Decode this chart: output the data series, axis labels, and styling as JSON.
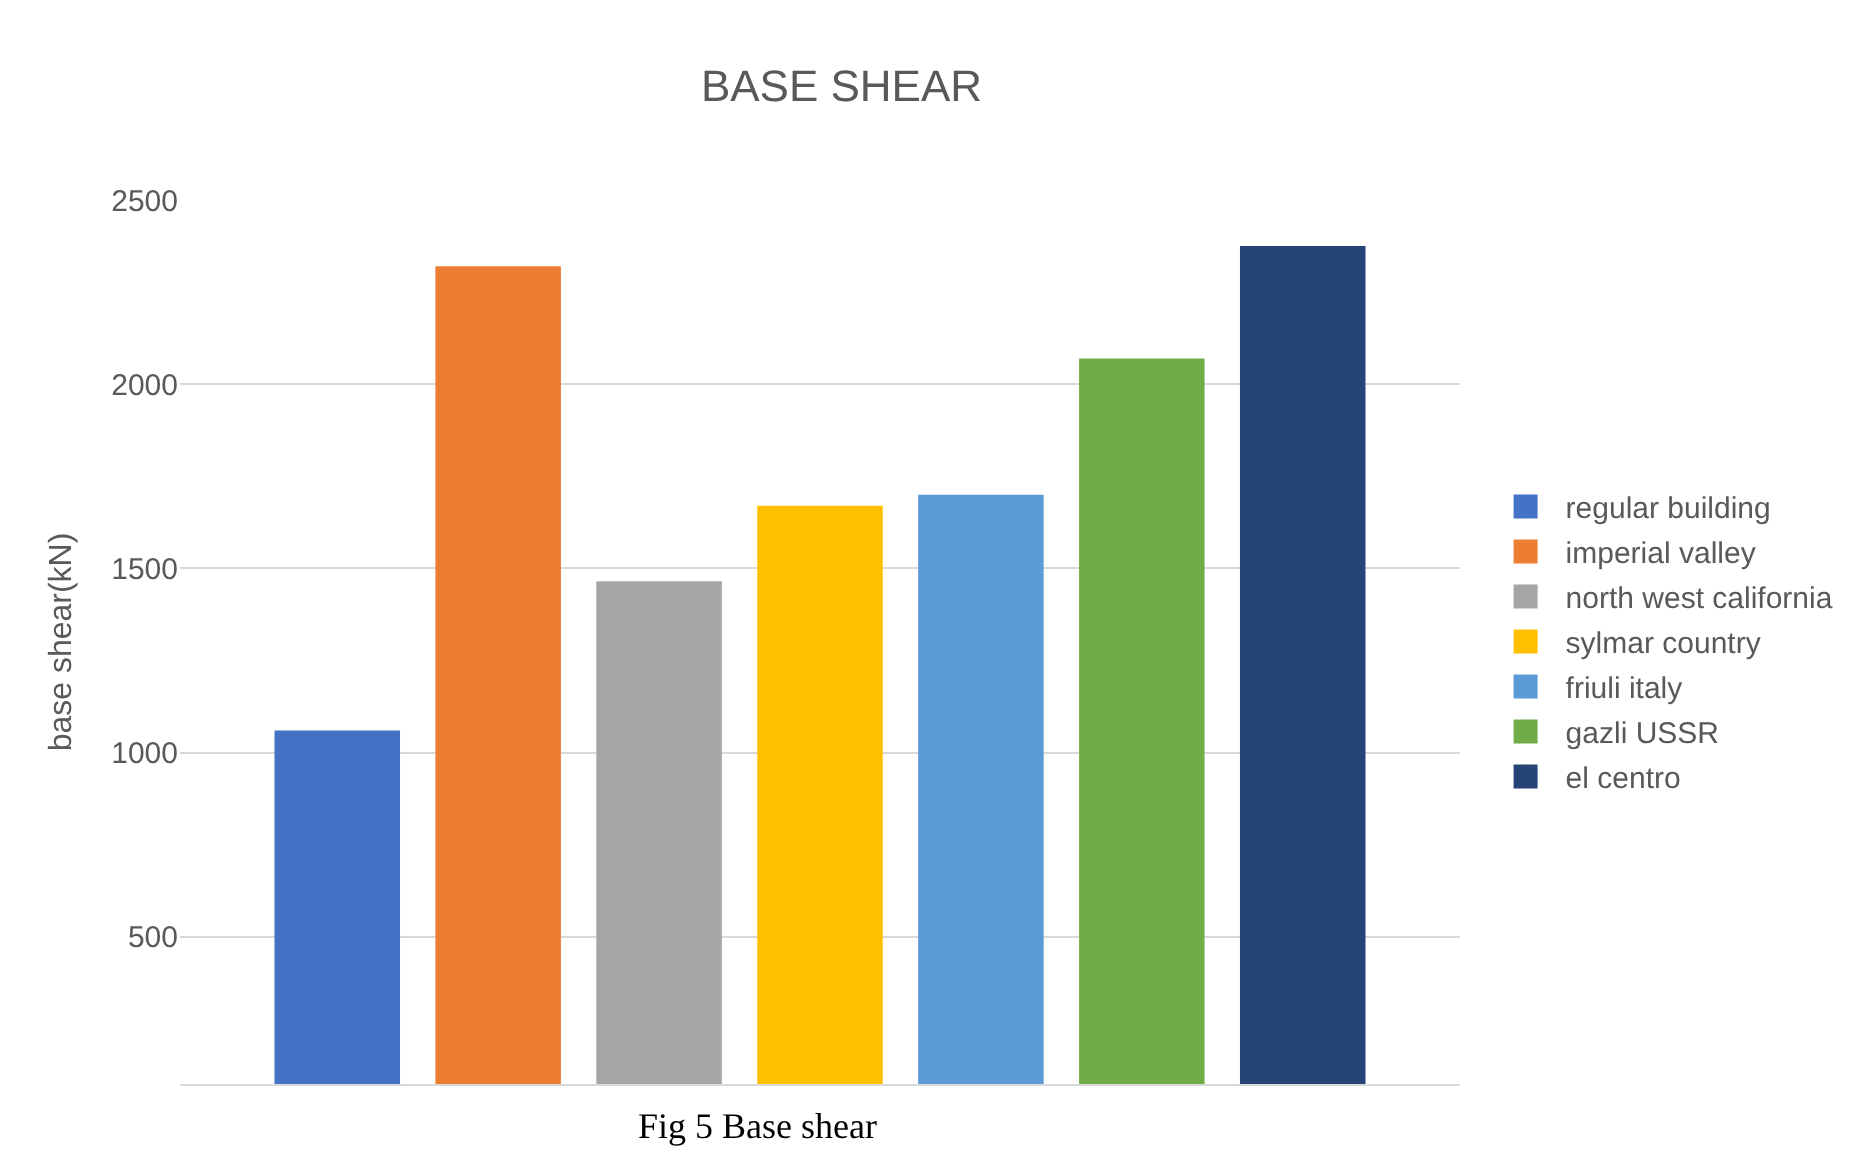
{
  "chart_data": {
    "type": "bar",
    "title": "BASE SHEAR",
    "ylabel": "base shear(kN)",
    "categories": [
      null
    ],
    "series": [
      {
        "name": "regular building",
        "color": "#4472c4",
        "values": [
          1060
        ]
      },
      {
        "name": "imperial valley",
        "color": "#ed7d31",
        "values": [
          2320
        ]
      },
      {
        "name": "north west california",
        "color": "#a5a5a5",
        "values": [
          1465
        ]
      },
      {
        "name": "sylmar country",
        "color": "#ffc000",
        "values": [
          1670
        ]
      },
      {
        "name": "friuli italy",
        "color": "#5b9bd5",
        "values": [
          1700
        ]
      },
      {
        "name": "gazli USSR",
        "color": "#70ad47",
        "values": [
          2070
        ]
      },
      {
        "name": "el centro",
        "color": "#264478",
        "values": [
          2375
        ]
      }
    ],
    "ylim": [
      100,
      2500
    ],
    "yticks": [
      500,
      1000,
      1500,
      2000,
      2500
    ],
    "grid": "y",
    "legend": "right",
    "tick_labels": "y",
    "annotations": [
      "Fig 5 Base shear"
    ]
  }
}
